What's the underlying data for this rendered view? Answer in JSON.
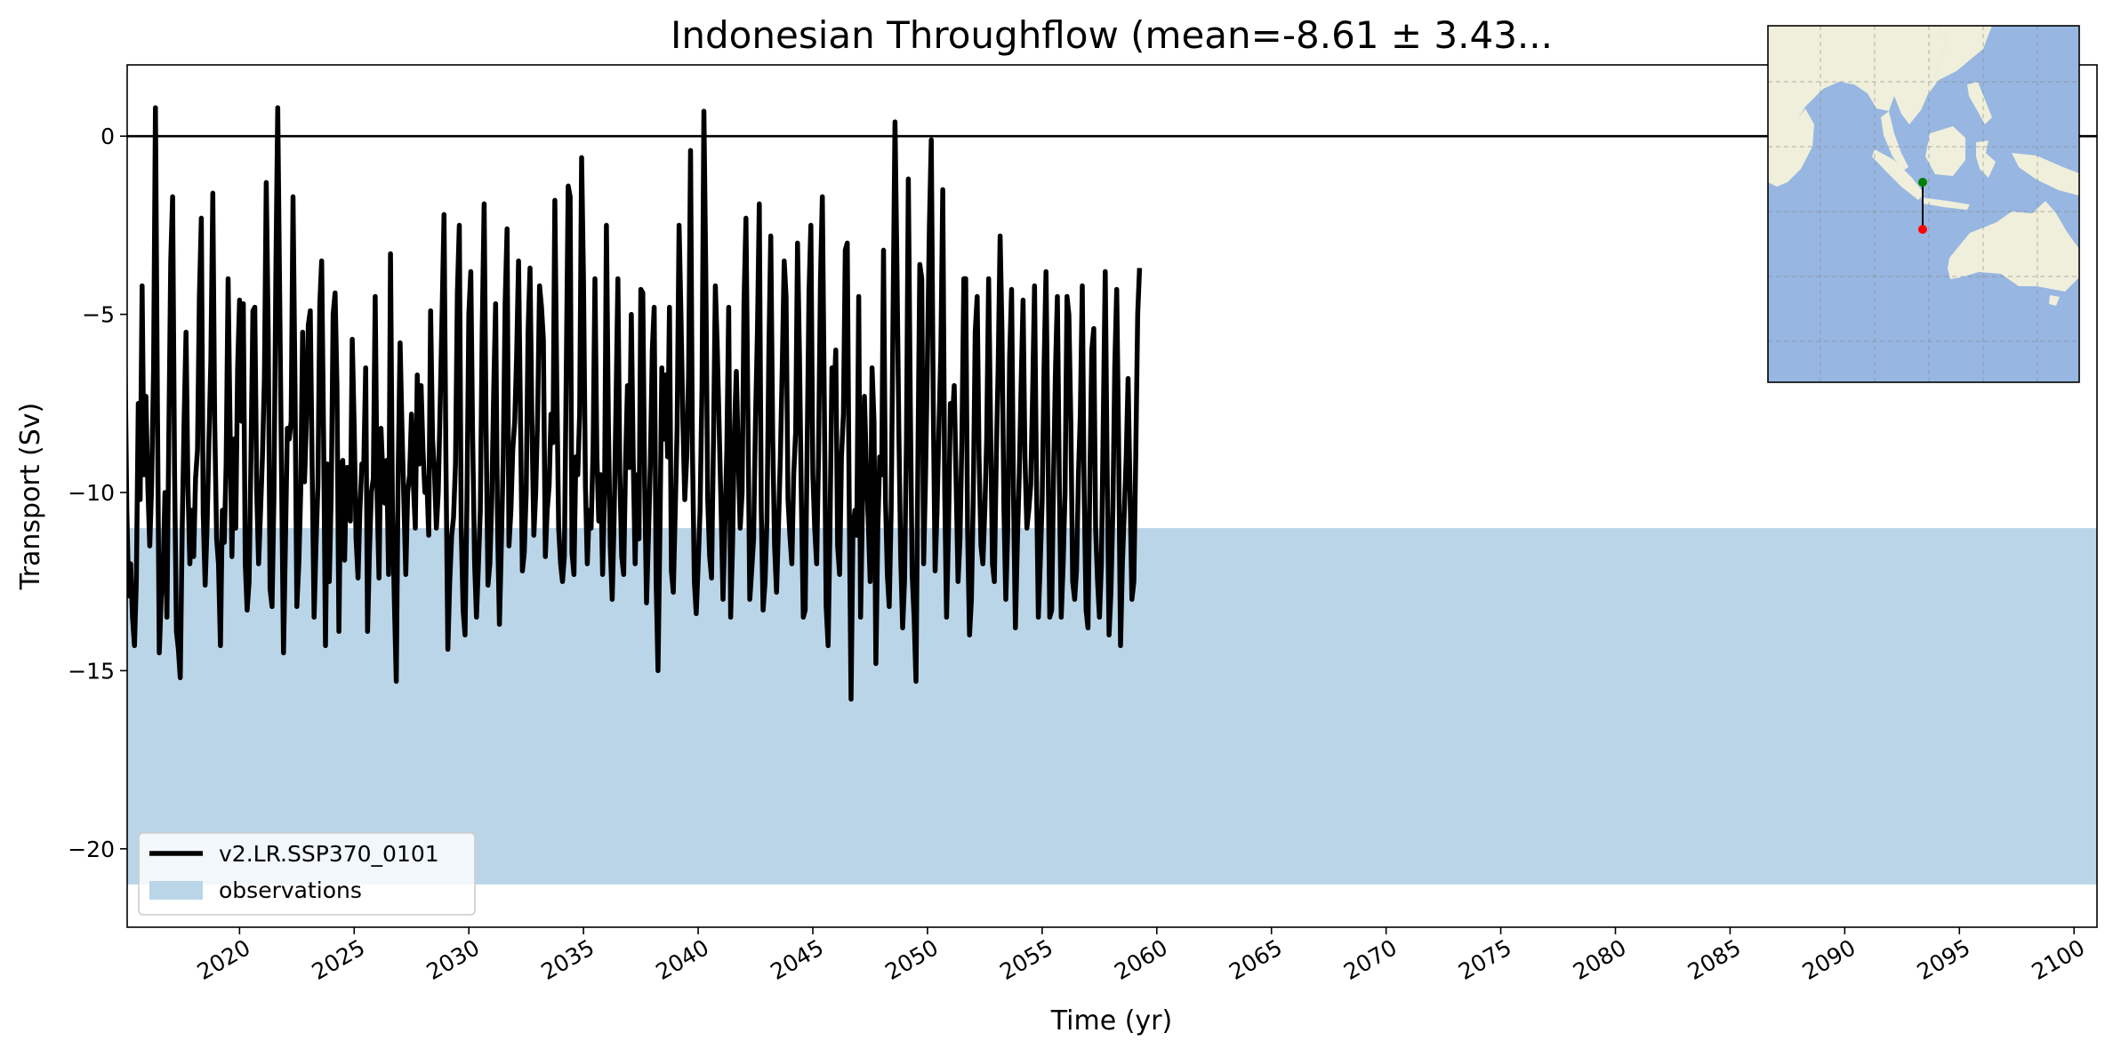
{
  "chart_data": {
    "type": "line",
    "title": "Indonesian Throughflow (mean=-8.61 ± 3.43...",
    "xlabel": "Time (yr)",
    "ylabel": "Transport (Sv)",
    "xlim": [
      2015.1,
      2101
    ],
    "ylim": [
      -22.2,
      2.0
    ],
    "xticks": [
      2020,
      2025,
      2030,
      2035,
      2040,
      2045,
      2050,
      2055,
      2060,
      2065,
      2070,
      2075,
      2080,
      2085,
      2090,
      2095,
      2100
    ],
    "xtick_labels": [
      "2020",
      "2025",
      "2030",
      "2035",
      "2040",
      "2045",
      "2050",
      "2055",
      "2060",
      "2065",
      "2070",
      "2075",
      "2080",
      "2085",
      "2090",
      "2095",
      "2100"
    ],
    "yticks": [
      0,
      -5,
      -10,
      -15,
      -20
    ],
    "ytick_labels": [
      "0",
      "−5",
      "−10",
      "−15",
      "−20"
    ],
    "zero_line": 0,
    "grid": false,
    "legend_position": "lower-left",
    "series": [
      {
        "name": "v2.LR.SSP370_0101",
        "color": "#000000",
        "x_start": 2015,
        "x_step": 0.0833333,
        "values": [
          -5.8,
          -10.5,
          -12.9,
          -12.0,
          -13.5,
          -14.3,
          -12.5,
          -7.5,
          -10.2,
          -4.2,
          -9.5,
          -7.3,
          -9.8,
          -11.5,
          -9.8,
          -6.5,
          0.8,
          -7.5,
          -14.5,
          -13.0,
          -12.2,
          -10.0,
          -13.5,
          -8.5,
          -3.5,
          -1.7,
          -9.5,
          -13.9,
          -14.4,
          -15.2,
          -11.0,
          -8.0,
          -5.5,
          -9.8,
          -12.0,
          -10.5,
          -11.8,
          -9.6,
          -8.8,
          -4.5,
          -2.3,
          -10.6,
          -12.6,
          -11.0,
          -8.5,
          -6.3,
          -1.6,
          -8.0,
          -11.3,
          -12.0,
          -14.3,
          -10.5,
          -11.4,
          -9.2,
          -4.0,
          -8.0,
          -11.8,
          -8.5,
          -11.0,
          -6.5,
          -4.6,
          -8.0,
          -4.7,
          -12.0,
          -13.3,
          -12.5,
          -9.0,
          -4.9,
          -4.8,
          -10.0,
          -12.0,
          -10.5,
          -9.0,
          -6.8,
          -1.3,
          -5.5,
          -12.7,
          -13.2,
          -10.2,
          -3.8,
          0.8,
          -4.5,
          -9.5,
          -14.5,
          -11.5,
          -8.2,
          -8.5,
          -8.0,
          -1.7,
          -7.0,
          -13.2,
          -12.0,
          -10.0,
          -5.5,
          -9.7,
          -8.0,
          -5.3,
          -4.9,
          -9.3,
          -13.5,
          -11.5,
          -9.8,
          -4.7,
          -3.5,
          -8.5,
          -14.3,
          -9.2,
          -12.5,
          -10.0,
          -5.0,
          -4.4,
          -7.0,
          -13.9,
          -9.3,
          -9.1,
          -11.9,
          -9.3,
          -9.3,
          -10.8,
          -5.7,
          -8.2,
          -11.3,
          -12.4,
          -10.5,
          -9.2,
          -9.3,
          -6.5,
          -13.9,
          -11.6,
          -10.0,
          -9.6,
          -4.5,
          -10.2,
          -12.4,
          -8.2,
          -9.5,
          -10.3,
          -9.1,
          -12.3,
          -3.3,
          -10.5,
          -13.0,
          -15.3,
          -9.5,
          -5.8,
          -8.2,
          -10.2,
          -12.3,
          -10.0,
          -9.5,
          -7.8,
          -9.8,
          -11.0,
          -6.7,
          -9.2,
          -7.0,
          -8.8,
          -10.0,
          -9.6,
          -11.2,
          -4.9,
          -8.5,
          -9.4,
          -11.0,
          -10.0,
          -7.5,
          -5.0,
          -2.2,
          -9.0,
          -14.4,
          -12.5,
          -11.2,
          -10.7,
          -9.2,
          -4.4,
          -2.5,
          -11.0,
          -13.3,
          -14.0,
          -10.2,
          -5.0,
          -3.8,
          -8.5,
          -12.0,
          -13.5,
          -12.0,
          -10.5,
          -5.5,
          -1.9,
          -8.0,
          -12.6,
          -12.0,
          -10.2,
          -7.2,
          -4.7,
          -10.8,
          -13.7,
          -11.5,
          -9.0,
          -4.7,
          -2.6,
          -11.5,
          -10.5,
          -8.8,
          -8.0,
          -6.2,
          -3.5,
          -7.8,
          -12.2,
          -11.7,
          -10.0,
          -5.5,
          -3.7,
          -8.0,
          -11.2,
          -10.0,
          -7.8,
          -4.2,
          -4.8,
          -5.7,
          -11.8,
          -10.5,
          -9.8,
          -7.8,
          -8.6,
          -1.8,
          -7.0,
          -11.0,
          -12.0,
          -12.5,
          -11.8,
          -6.5,
          -1.4,
          -1.7,
          -11.7,
          -12.3,
          -9.0,
          -9.5,
          -7.8,
          -0.6,
          -4.0,
          -9.8,
          -12.0,
          -10.5,
          -11.0,
          -8.8,
          -4.0,
          -9.0,
          -10.8,
          -9.5,
          -12.3,
          -10.0,
          -2.5,
          -8.0,
          -11.5,
          -13.0,
          -10.8,
          -7.5,
          -4.0,
          -9.5,
          -11.8,
          -12.3,
          -9.2,
          -7.0,
          -9.3,
          -5.0,
          -9.0,
          -12.0,
          -9.5,
          -11.3,
          -4.3,
          -4.4,
          -9.8,
          -13.1,
          -11.2,
          -9.2,
          -6.0,
          -4.8,
          -12.5,
          -15.0,
          -11.0,
          -6.5,
          -8.5,
          -6.7,
          -9.0,
          -4.8,
          -12.2,
          -12.8,
          -10.5,
          -8.2,
          -2.5,
          -5.0,
          -8.0,
          -10.2,
          -9.0,
          -6.7,
          -0.4,
          -8.8,
          -12.5,
          -13.4,
          -12.0,
          -10.5,
          -7.0,
          0.7,
          -4.0,
          -10.2,
          -11.8,
          -12.4,
          -8.5,
          -4.2,
          -6.0,
          -8.2,
          -10.5,
          -13.0,
          -11.0,
          -8.8,
          -4.8,
          -13.5,
          -11.5,
          -8.2,
          -6.6,
          -9.0,
          -11.0,
          -10.0,
          -4.7,
          -2.3,
          -7.5,
          -13.0,
          -12.2,
          -11.3,
          -8.0,
          -5.5,
          -1.9,
          -10.5,
          -13.3,
          -12.5,
          -10.8,
          -6.0,
          -2.8,
          -8.5,
          -11.5,
          -12.8,
          -11.0,
          -9.0,
          -6.5,
          -3.5,
          -4.5,
          -10.2,
          -11.2,
          -12.0,
          -9.5,
          -8.3,
          -3.0,
          -6.2,
          -10.2,
          -13.5,
          -13.3,
          -9.0,
          -4.4,
          -2.5,
          -9.5,
          -11.0,
          -12.0,
          -9.0,
          -4.0,
          -1.7,
          -7.5,
          -13.2,
          -14.3,
          -11.0,
          -6.5,
          -7.5,
          -6.0,
          -11.5,
          -12.3,
          -9.0,
          -7.8,
          -3.2,
          -3.0,
          -10.0,
          -15.8,
          -11.0,
          -10.5,
          -11.2,
          -4.5,
          -13.5,
          -10.2,
          -7.3,
          -9.3,
          -10.8,
          -12.5,
          -6.5,
          -8.0,
          -14.8,
          -11.0,
          -9.0,
          -9.5,
          -3.2,
          -10.2,
          -12.3,
          -13.2,
          -10.5,
          -5.0,
          0.4,
          -3.5,
          -8.2,
          -11.8,
          -13.8,
          -12.5,
          -8.5,
          -1.2,
          -7.5,
          -12.3,
          -13.5,
          -15.3,
          -9.0,
          -3.6,
          -4.0,
          -12.0,
          -9.5,
          -6.2,
          -2.5,
          -0.1,
          -7.5,
          -12.2,
          -10.5,
          -8.2,
          -6.0,
          -1.5,
          -10.0,
          -13.5,
          -11.0,
          -7.5,
          -8.0,
          -7.0,
          -9.8,
          -12.5,
          -11.3,
          -8.5,
          -4.0,
          -4.0,
          -11.0,
          -14.0,
          -13.0,
          -10.0,
          -5.5,
          -4.5,
          -9.0,
          -11.5,
          -12.0,
          -10.5,
          -8.5,
          -4.0,
          -8.0,
          -12.0,
          -12.5,
          -9.0,
          -6.5,
          -2.8,
          -5.5,
          -10.5,
          -13.0,
          -11.0,
          -6.2,
          -4.3,
          -10.0,
          -13.8,
          -11.5,
          -9.5,
          -7.0,
          -4.6,
          -9.0,
          -11.0,
          -10.5,
          -9.8,
          -7.3,
          -4.2,
          -9.5,
          -13.5,
          -12.0,
          -10.2,
          -6.5,
          -3.8,
          -8.5,
          -13.5,
          -13.3,
          -9.5,
          -6.5,
          -4.5,
          -9.8,
          -13.5,
          -12.0,
          -10.0,
          -4.5,
          -5.0,
          -8.0,
          -12.5,
          -13.0,
          -12.2,
          -9.5,
          -7.8,
          -4.2,
          -10.0,
          -13.3,
          -13.8,
          -9.5,
          -6.0,
          -5.4,
          -11.0,
          -12.5,
          -13.5,
          -12.0,
          -8.0,
          -3.8,
          -9.2,
          -14.0,
          -12.8,
          -10.5,
          -6.5,
          -4.3,
          -8.5,
          -14.3,
          -12.0,
          -10.5,
          -9.0,
          -6.8,
          -10.0,
          -13.0,
          -12.5,
          -9.0,
          -5.0,
          -3.7
        ]
      }
    ],
    "band": {
      "name": "observations",
      "color": "#bad5e8",
      "ymin": -21.0,
      "ymax": -11.0
    }
  },
  "inset_map": {
    "ocean_color": "#97b6e1",
    "land_color": "#efefdb",
    "start_point_color": "#008000",
    "end_point_color": "#ff0000"
  }
}
